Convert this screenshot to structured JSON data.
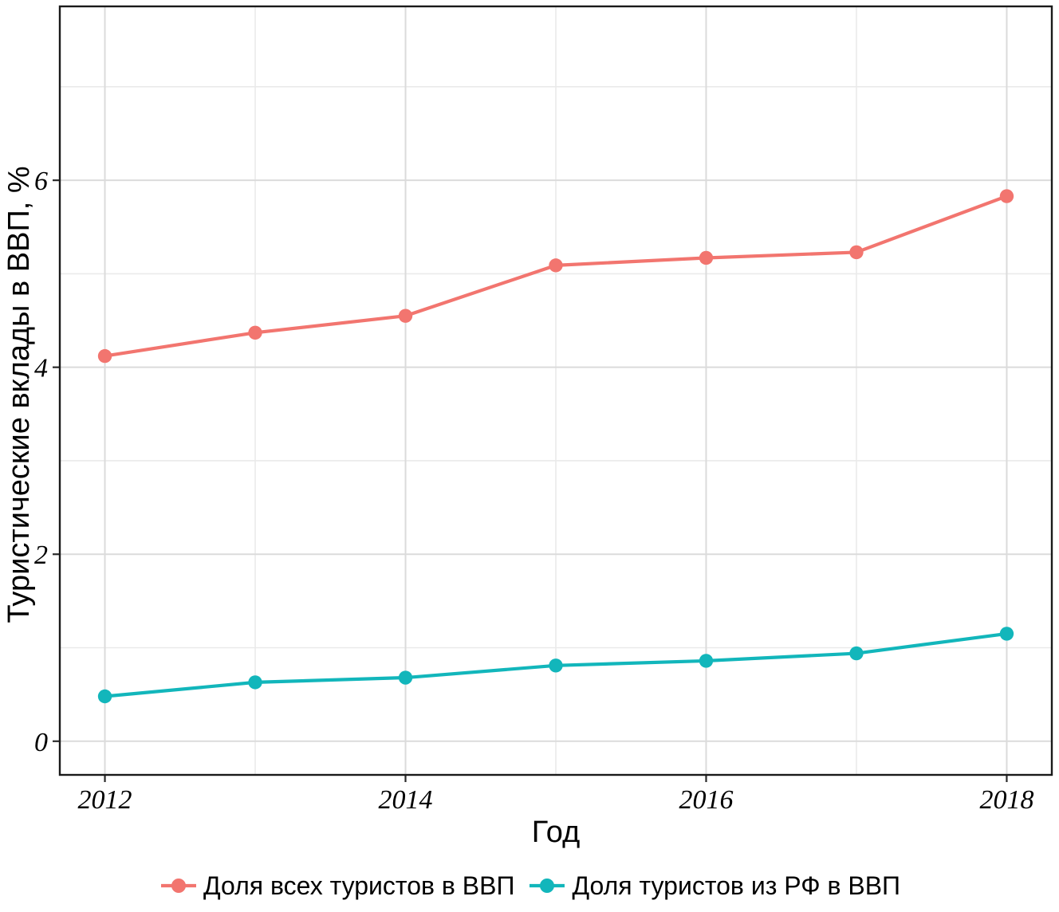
{
  "chart_data": {
    "type": "line",
    "title": "",
    "xlabel": "Год",
    "ylabel": "Туристические вклады в ВВП, %",
    "x": [
      2012,
      2013,
      2014,
      2015,
      2016,
      2017,
      2018
    ],
    "series": [
      {
        "name": "Доля всех туристов в ВВП",
        "color": "#F2756F",
        "values": [
          4.12,
          4.37,
          4.55,
          5.09,
          5.17,
          5.23,
          5.83
        ]
      },
      {
        "name": "Доля туристов из РФ в ВВП",
        "color": "#12B6BB",
        "values": [
          0.48,
          0.63,
          0.68,
          0.81,
          0.86,
          0.94,
          1.15
        ]
      }
    ],
    "x_major_ticks": [
      2012,
      2014,
      2016,
      2018
    ],
    "x_minor_ticks": [
      2013,
      2015,
      2017
    ],
    "y_major_ticks": [
      0,
      2,
      4,
      6
    ],
    "y_minor_ticks": [
      1,
      3,
      5,
      7
    ],
    "xlim": [
      2011.7,
      2018.3
    ],
    "ylim": [
      -0.36,
      7.86
    ],
    "grid": "major+minor",
    "legend_position": "bottom",
    "marker": "filled-circle"
  },
  "style": {
    "background": "#FFFFFF",
    "panel_border": "#1A1A1A",
    "tick_color": "#2A2A2A",
    "grid_major": "#DBDBDB",
    "grid_minor": "#EAEAEA",
    "text_color": "#000000"
  }
}
